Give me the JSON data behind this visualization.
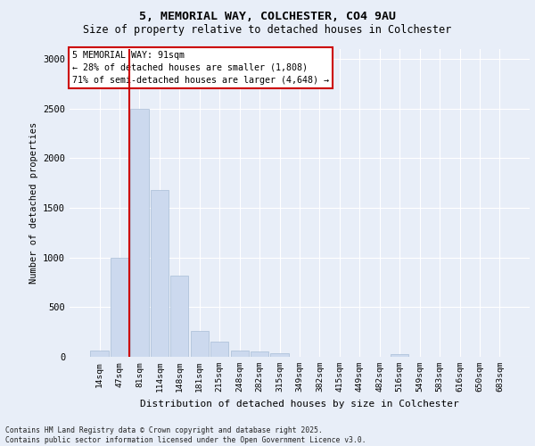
{
  "title_line1": "5, MEMORIAL WAY, COLCHESTER, CO4 9AU",
  "title_line2": "Size of property relative to detached houses in Colchester",
  "xlabel": "Distribution of detached houses by size in Colchester",
  "ylabel": "Number of detached properties",
  "categories": [
    "14sqm",
    "47sqm",
    "81sqm",
    "114sqm",
    "148sqm",
    "181sqm",
    "215sqm",
    "248sqm",
    "282sqm",
    "315sqm",
    "349sqm",
    "382sqm",
    "415sqm",
    "449sqm",
    "482sqm",
    "516sqm",
    "549sqm",
    "583sqm",
    "616sqm",
    "650sqm",
    "683sqm"
  ],
  "values": [
    60,
    1000,
    2500,
    1680,
    820,
    265,
    155,
    65,
    50,
    40,
    0,
    0,
    0,
    0,
    0,
    30,
    0,
    0,
    0,
    0,
    0
  ],
  "bar_color": "#ccd9ee",
  "bar_edge_color": "#a8bdd6",
  "vline_color": "#cc0000",
  "vline_pos": 1.5,
  "ylim": [
    0,
    3100
  ],
  "yticks": [
    0,
    500,
    1000,
    1500,
    2000,
    2500,
    3000
  ],
  "annotation_text": "5 MEMORIAL WAY: 91sqm\n← 28% of detached houses are smaller (1,808)\n71% of semi-detached houses are larger (4,648) →",
  "annotation_box_color": "#ffffff",
  "annotation_box_edge": "#cc0000",
  "footer_line1": "Contains HM Land Registry data © Crown copyright and database right 2025.",
  "footer_line2": "Contains public sector information licensed under the Open Government Licence v3.0.",
  "background_color": "#e8eef8",
  "plot_bg_color": "#e8eef8"
}
